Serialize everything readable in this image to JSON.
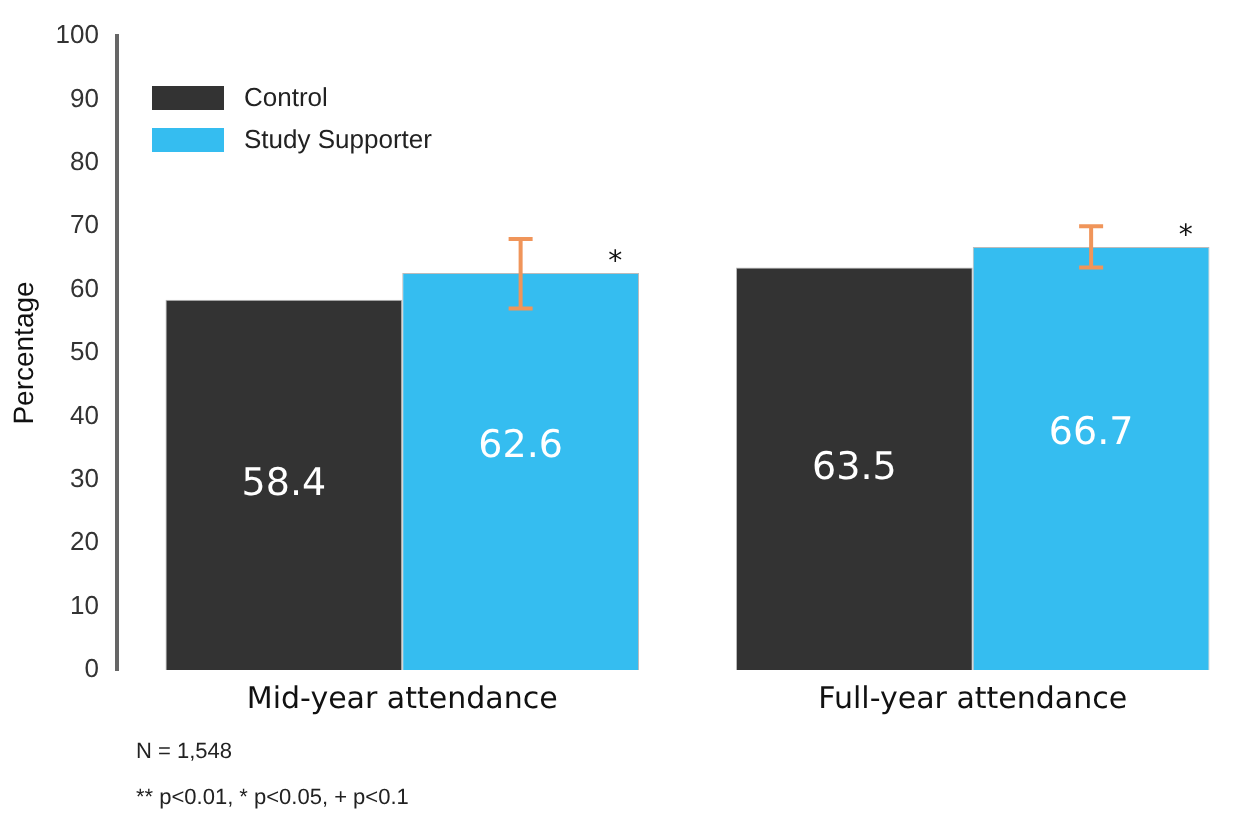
{
  "chart_data": {
    "type": "bar",
    "ylabel": "Percentage",
    "categories": [
      "Mid-year attendance",
      "Full-year attendance"
    ],
    "series": [
      {
        "name": "Control",
        "color": "#333333",
        "values": [
          58.4,
          63.5
        ]
      },
      {
        "name": "Study Supporter",
        "color": "#35bdf0",
        "values": [
          62.6,
          66.7
        ],
        "errors": [
          [
            57,
            68
          ],
          [
            63.5,
            70
          ]
        ]
      }
    ],
    "ylim": [
      0,
      100
    ],
    "yticks": [
      0,
      10,
      20,
      30,
      40,
      50,
      60,
      70,
      80,
      90,
      100
    ],
    "grid": false,
    "legend": "top left",
    "data_labels": true,
    "annotations": [
      "*",
      "*",
      "N = 1,548",
      "** p<0.01, * p<0.05, + p<0.1"
    ]
  }
}
